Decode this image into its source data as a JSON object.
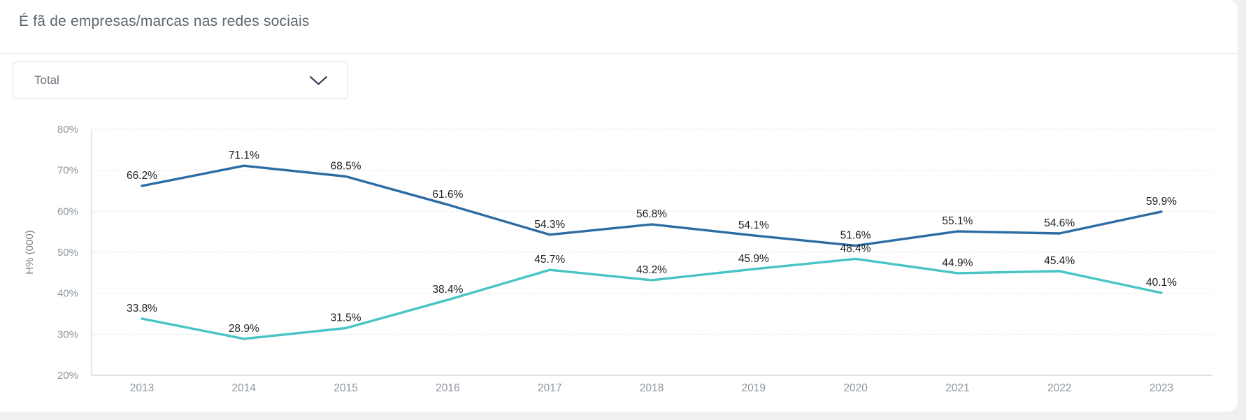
{
  "header": {
    "title": "É fã de empresas/marcas nas redes sociais"
  },
  "filter": {
    "selected": "Total",
    "chevron_icon": "chevron-down"
  },
  "chart_data": {
    "type": "line",
    "title": "É fã de empresas/marcas nas redes sociais",
    "xlabel": "",
    "ylabel": "H% (000)",
    "x": [
      "2013",
      "2014",
      "2015",
      "2016",
      "2017",
      "2018",
      "2019",
      "2020",
      "2021",
      "2022",
      "2023"
    ],
    "series": [
      {
        "name": "series-blue",
        "color": "#2d6ca3",
        "values": [
          66.2,
          71.1,
          68.5,
          61.6,
          54.3,
          56.8,
          54.1,
          51.6,
          55.1,
          54.6,
          59.9
        ]
      },
      {
        "name": "series-teal",
        "color": "#48c4c4",
        "values": [
          33.8,
          28.9,
          31.5,
          38.4,
          45.7,
          43.2,
          45.9,
          48.4,
          44.9,
          45.4,
          40.1
        ]
      }
    ],
    "ylim": [
      20,
      80
    ],
    "yticks_percent": [
      80,
      70,
      60,
      50,
      40,
      30,
      20
    ],
    "grid": "horizontal-dotted",
    "legend": "none",
    "data_labels": "percent_one_decimal"
  },
  "colors": {
    "page_background": "#f0f0f1",
    "card_background": "#ffffff",
    "title_text": "#5b6770",
    "tick_text": "#8d959d",
    "axis_label_text": "#75808a",
    "data_label_text": "#1f1f1f",
    "axis_line": "#d8d8d8",
    "gridline": "#e0e0e0",
    "dropdown_border": "#d9dee4",
    "dropdown_text": "#6b7682",
    "chevron": "#2e3f5e"
  }
}
